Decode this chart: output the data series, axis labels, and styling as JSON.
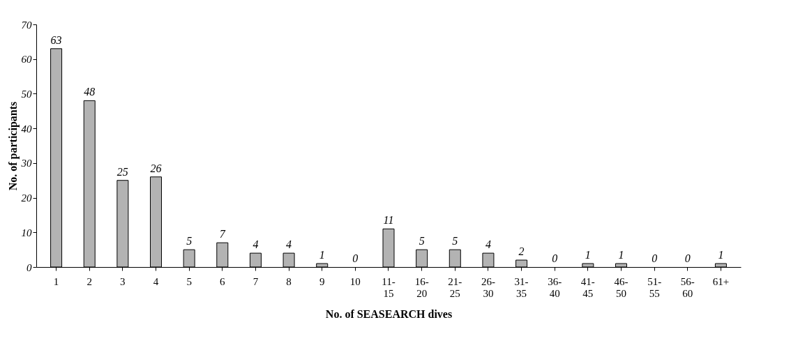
{
  "chart_data": {
    "type": "bar",
    "xlabel": "No. of SEASEARCH dives",
    "ylabel": "No. of participants",
    "categories": [
      "1",
      "2",
      "3",
      "4",
      "5",
      "6",
      "7",
      "8",
      "9",
      "10",
      "11-15",
      "16-20",
      "21-25",
      "26-30",
      "31-35",
      "36-40",
      "41-45",
      "46-50",
      "51-55",
      "56-60",
      "61+"
    ],
    "values": [
      63,
      48,
      25,
      26,
      5,
      7,
      4,
      4,
      1,
      0,
      11,
      5,
      5,
      4,
      2,
      0,
      1,
      1,
      0,
      0,
      1
    ],
    "color": "#b3b3b3",
    "ylim": [
      0,
      70
    ],
    "yticks": [
      0,
      10,
      20,
      30,
      40,
      50,
      60,
      70
    ],
    "grid": false,
    "data_labels": true
  }
}
